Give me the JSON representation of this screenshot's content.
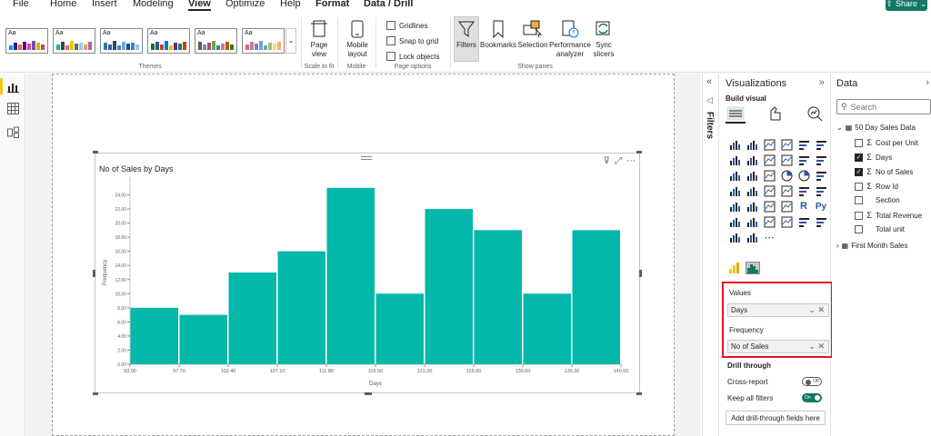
{
  "menu": {
    "items": [
      "File",
      "Home",
      "Insert",
      "Modeling",
      "View",
      "Optimize",
      "Help"
    ],
    "active": "View",
    "context_tabs": [
      "Format",
      "Data / Drill"
    ],
    "share_label": "Share"
  },
  "ribbon": {
    "themes_label": "Themes",
    "scale_group_label": "Scale to fit",
    "page_view_label": "Page view",
    "mobile_group_label": "Mobile",
    "mobile_layout_label": "Mobile layout",
    "page_options_label": "Page options",
    "gridlines_label": "Gridlines",
    "snap_label": "Snap to grid",
    "lock_label": "Lock objects",
    "show_panes_label": "Show panes",
    "filters_label": "Filters",
    "bookmarks_label": "Bookmarks",
    "selection_label": "Selection",
    "performance_label": "Performance analyzer",
    "sync_label": "Sync slicers",
    "theme_aa": "Aa"
  },
  "visual": {
    "title": "No of Sales by Days"
  },
  "chart_data": {
    "type": "bar",
    "title": "No of Sales by Days",
    "xlabel": "Days",
    "ylabel": "Frequency",
    "bin_edges": [
      93.0,
      97.7,
      102.4,
      107.1,
      111.8,
      116.5,
      121.2,
      125.9,
      130.6,
      135.3,
      140.0
    ],
    "x_tick_labels": [
      "93.00",
      "97.70",
      "102.40",
      "107.10",
      "111.80",
      "116.50",
      "121.20",
      "125.90",
      "130.60",
      "135.30",
      "140.00"
    ],
    "values": [
      8,
      7,
      13,
      16,
      25,
      10,
      22,
      19,
      10,
      19
    ],
    "y_tick_labels": [
      "0.00",
      "2.00",
      "4.00",
      "6.00",
      "8.00",
      "10.00",
      "12.00",
      "14.00",
      "16.00",
      "18.00",
      "20.00",
      "22.00",
      "24.00"
    ],
    "ylim": [
      0,
      26
    ],
    "bar_color": "#01b8aa",
    "grid": false
  },
  "filters_pane": {
    "label": "Filters"
  },
  "viz_pane": {
    "title": "Visualizations",
    "build_visual": "Build visual",
    "values_label": "Values",
    "values_field": "Days",
    "frequency_label": "Frequency",
    "frequency_field": "No of Sales",
    "drill_title": "Drill through",
    "cross_report_label": "Cross-report",
    "cross_report_state": "Off",
    "keep_filters_label": "Keep all filters",
    "keep_filters_state": "On",
    "add_drill_label": "Add drill-through fields here"
  },
  "data_pane": {
    "title": "Data",
    "search_placeholder": "Search",
    "table_name": "50 Day Sales Data",
    "fields": [
      {
        "name": "Cost per Unit",
        "sigma": true,
        "checked": false
      },
      {
        "name": "Days",
        "sigma": true,
        "checked": true
      },
      {
        "name": "No of Sales",
        "sigma": true,
        "checked": true
      },
      {
        "name": "Row Id",
        "sigma": true,
        "checked": false
      },
      {
        "name": "Section",
        "sigma": false,
        "checked": false
      },
      {
        "name": "Total Revenue",
        "sigma": true,
        "checked": false
      },
      {
        "name": "Total unit",
        "sigma": false,
        "checked": false
      }
    ],
    "table2_name": "First Month Sales"
  }
}
